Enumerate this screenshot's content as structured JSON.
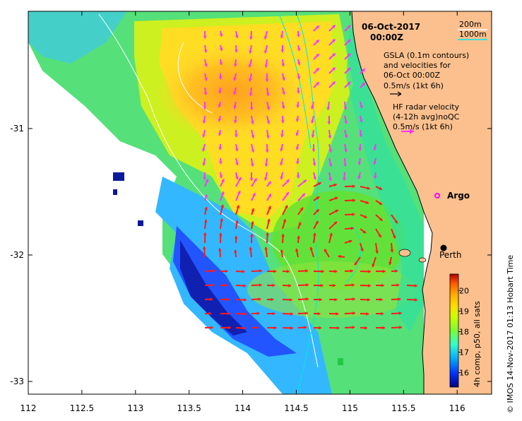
{
  "title": {
    "date": "06-Oct-2017",
    "time": "00:00Z"
  },
  "isobath_legend": {
    "shallow_label": "200m",
    "deep_label": "1000m",
    "shallow_color": "#ffffff",
    "deep_color": "#00e5ee"
  },
  "gsla_legend": {
    "line1": "GSLA (0.1m contours)",
    "line2": "and velocities for",
    "line3": "06-Oct 00:00Z",
    "scale": "0.5m/s (1kt 6h)",
    "arrow_color": "#000000"
  },
  "hf_legend": {
    "line1": "HF radar velocity",
    "line2": "(4-12h avg)noQC",
    "scale": "0.5m/s (1kt 6h)",
    "arrow_color": "#ff33ff"
  },
  "markers": {
    "argo": "Argo",
    "perth": "Perth"
  },
  "axes": {
    "x_ticks": [
      "112",
      "112.5",
      "113",
      "113.5",
      "114",
      "114.5",
      "115",
      "115.5",
      "116"
    ],
    "y_ticks": [
      "-31",
      "-32",
      "-33"
    ]
  },
  "colorbar": {
    "label": "4h comp, p50, all sats",
    "ticks": [
      "20",
      "19",
      "18",
      "17",
      "16"
    ],
    "range": [
      15.3,
      20.8
    ]
  },
  "side_caption": "© IMOS 14-Nov-2017 01:13 Hobart Time",
  "colors": {
    "land": "#fbc08e",
    "hf_arrow": "#ff33ff",
    "arrow_red": "#ff1a1a",
    "cloud": "#ffffff"
  }
}
